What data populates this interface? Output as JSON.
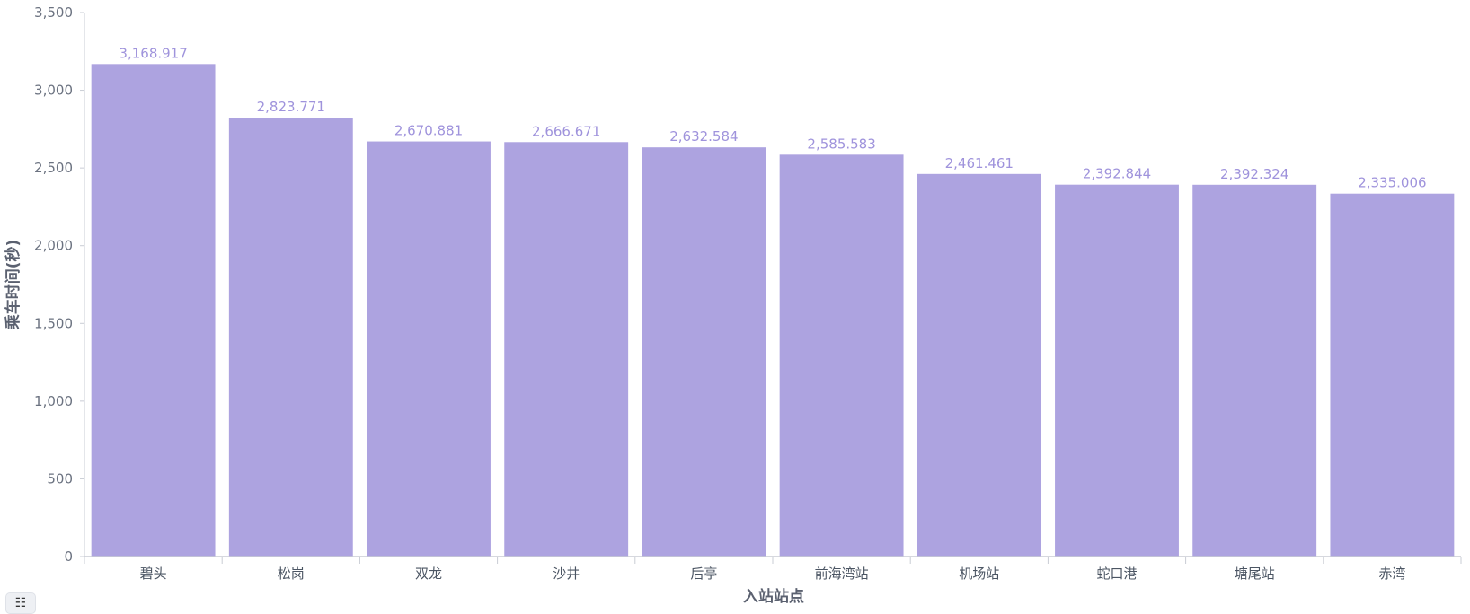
{
  "chart_data": {
    "type": "bar",
    "categories": [
      "碧头",
      "松岗",
      "双龙",
      "沙井",
      "后亭",
      "前海湾站",
      "机场站",
      "蛇口港",
      "塘尾站",
      "赤湾"
    ],
    "values": [
      3168.917,
      2823.771,
      2670.881,
      2666.671,
      2632.584,
      2585.583,
      2461.461,
      2392.844,
      2392.324,
      2335.006
    ],
    "data_labels": [
      "3,168.917",
      "2,823.771",
      "2,670.881",
      "2,666.671",
      "2,632.584",
      "2,585.583",
      "2,461.461",
      "2,392.844",
      "2,392.324",
      "2,335.006"
    ],
    "xlabel": "入站站点",
    "ylabel": "乘车时间(秒)",
    "ylim": [
      0,
      3500
    ],
    "yticks": [
      0,
      500,
      1000,
      1500,
      2000,
      2500,
      3000,
      3500
    ],
    "ytick_labels": [
      "0",
      "500",
      "1,000",
      "1,500",
      "2,000",
      "2,500",
      "3,000",
      "3,500"
    ],
    "grid": false,
    "colors": {
      "bar": "#ada3e0",
      "data_label": "#9f93dc",
      "axis": "#c9ccd4",
      "text": "#6b7280"
    }
  },
  "legend_toggle": {
    "icon": "list-icon",
    "glyph": "☷"
  }
}
